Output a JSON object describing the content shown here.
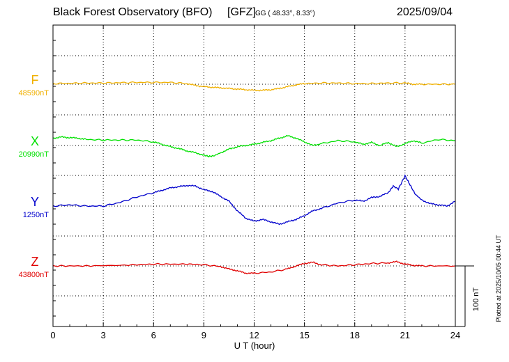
{
  "header": {
    "title": "Black Forest Observatory (BFO)",
    "source": "[GFZ]",
    "coords": "GG ( 48.33°,   8.33°)",
    "date": "2025/09/04"
  },
  "footer": {
    "xlabel": "U T (hour)",
    "scale_label": "100 nT",
    "plotted": "Plotted at 2025/10/05 00:44 UT"
  },
  "colors": {
    "F": "#f0b000",
    "X": "#00e000",
    "Y": "#0000cc",
    "Z": "#e00000",
    "grid": "#000000"
  },
  "chart_data": {
    "type": "line",
    "title": "Black Forest Observatory (BFO)",
    "xlabel": "U T (hour)",
    "ylabel": "",
    "xlim": [
      0,
      24
    ],
    "x_ticks": [
      0,
      3,
      6,
      9,
      12,
      15,
      18,
      21,
      24
    ],
    "x_tick_labels": [
      "0",
      "3",
      "6",
      "9",
      "12",
      "15",
      "18",
      "21",
      "24"
    ],
    "scale_bar_nT": 100,
    "grid": true,
    "series": [
      {
        "name": "F",
        "baseline_label": "48590nT",
        "baseline_nT": 48590,
        "color": "#f0b000",
        "x": [
          0,
          1,
          2,
          3,
          4,
          5,
          6,
          7,
          8,
          8.5,
          9,
          9.5,
          10,
          10.5,
          11,
          11.5,
          12,
          12.5,
          13,
          13.5,
          14,
          14.5,
          15,
          16,
          17,
          18,
          19,
          20,
          21,
          21.5,
          22,
          23,
          24
        ],
        "values": [
          1,
          1.5,
          2,
          2,
          2.5,
          3,
          3,
          3,
          1,
          -2,
          -4,
          -5,
          -6,
          -7,
          -8,
          -9,
          -10,
          -10,
          -9,
          -7,
          -4,
          -1,
          1,
          2,
          2,
          1,
          1,
          2,
          2,
          0,
          0,
          0,
          0
        ]
      },
      {
        "name": "X",
        "baseline_label": "20990nT",
        "baseline_nT": 20990,
        "color": "#00e000",
        "x": [
          0,
          0.5,
          1,
          1.5,
          2,
          3,
          4,
          5,
          6,
          6.5,
          7,
          7.5,
          8,
          8.5,
          9,
          9.3,
          9.6,
          10,
          10.5,
          11,
          11.5,
          12,
          12.5,
          13,
          13.5,
          14,
          14.5,
          15,
          15.5,
          16,
          17,
          18,
          18.5,
          19,
          19.5,
          20,
          20.5,
          21,
          21.5,
          22,
          23,
          24
        ],
        "values": [
          12,
          14,
          13,
          12,
          10,
          9,
          9,
          9,
          6,
          2,
          -2,
          -5,
          -9,
          -12,
          -16,
          -18,
          -17,
          -12,
          -6,
          -2,
          0,
          2,
          5,
          8,
          12,
          16,
          12,
          6,
          0,
          3,
          8,
          6,
          2,
          5,
          0,
          5,
          -2,
          3,
          8,
          4,
          10,
          8
        ]
      },
      {
        "name": "Y",
        "baseline_label": "1250nT",
        "baseline_nT": 1250,
        "color": "#0000cc",
        "x": [
          0,
          1,
          2,
          3,
          4,
          5,
          6,
          6.5,
          7,
          7.5,
          8,
          8.5,
          9,
          9.5,
          10,
          10.5,
          11,
          11.5,
          12,
          12.5,
          13,
          13.5,
          14,
          14.5,
          15,
          15.5,
          16,
          17,
          18,
          18.5,
          19,
          19.5,
          20,
          20.3,
          20.6,
          21,
          21.3,
          21.6,
          22,
          22.5,
          23,
          23.5,
          24
        ],
        "values": [
          0,
          2,
          0,
          0,
          6,
          15,
          22,
          26,
          30,
          32,
          34,
          33,
          27,
          24,
          16,
          8,
          -8,
          -20,
          -25,
          -22,
          -26,
          -30,
          -26,
          -22,
          -16,
          -8,
          -4,
          5,
          10,
          8,
          14,
          16,
          22,
          33,
          28,
          50,
          35,
          20,
          10,
          4,
          2,
          0,
          8
        ]
      },
      {
        "name": "Z",
        "baseline_label": "43800nT",
        "baseline_nT": 43800,
        "color": "#e00000",
        "x": [
          0,
          2,
          4,
          6,
          8,
          9,
          10,
          10.5,
          11,
          11.5,
          12,
          13,
          14,
          14.5,
          15,
          15.5,
          16,
          17,
          18,
          19,
          20,
          20.5,
          21,
          21.5,
          22,
          24
        ],
        "values": [
          0,
          0,
          1,
          3,
          3,
          2,
          -1,
          -5,
          -8,
          -12,
          -12,
          -10,
          -5,
          0,
          4,
          6,
          2,
          0,
          2,
          4,
          5,
          7,
          3,
          1,
          0,
          0
        ]
      }
    ]
  }
}
